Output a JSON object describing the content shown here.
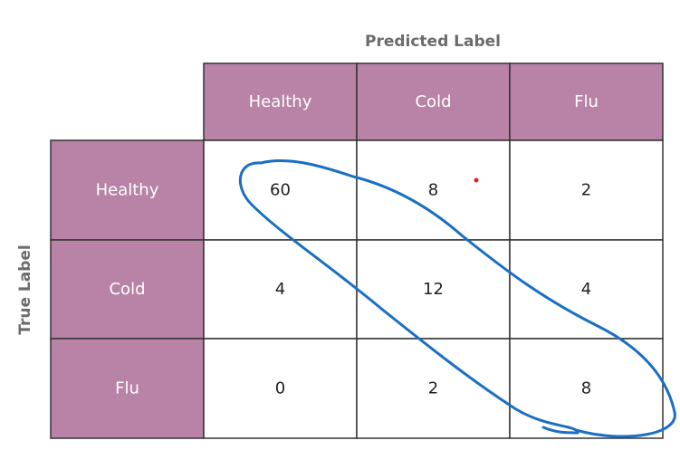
{
  "chart_data": {
    "type": "table",
    "title": "",
    "xlabel": "Predicted Label",
    "ylabel": "True Label",
    "columns": [
      "Healthy",
      "Cold",
      "Flu"
    ],
    "rows": [
      "Healthy",
      "Cold",
      "Flu"
    ],
    "values": [
      [
        60,
        8,
        2
      ],
      [
        4,
        12,
        4
      ],
      [
        0,
        2,
        8
      ]
    ]
  },
  "colors": {
    "header_fill": "#b883a6",
    "header_text": "#ffffff",
    "cell_fill": "#ffffff",
    "cell_text": "#222222",
    "grid": "#333333",
    "axis_label": "#6b6b6b",
    "annotation_stroke": "#1a6fc4",
    "annotation_dot": "#e02020"
  }
}
